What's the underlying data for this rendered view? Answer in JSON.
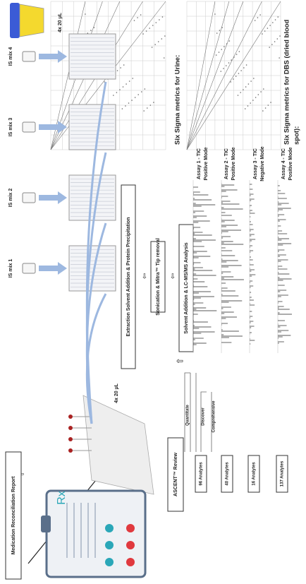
{
  "cup_label": "4x 20 µL",
  "plate_label": "4x 20 µL",
  "is_mixes": [
    "IS mix 1",
    "IS mix 2",
    "IS mix 3",
    "IS mix 4"
  ],
  "steps": {
    "extraction": "Extraction Solvent Addition & Protein Precipitation",
    "sonication": "Sonication & Mitra™ Tip removal",
    "analysis": "Solvent Addition & LC-MS/MS Analysis",
    "review": "ASCENT™ Review",
    "report": "Medication Reconciliation Report"
  },
  "modes": [
    "Quantitate",
    "Discover",
    "Comprehensive"
  ],
  "analytes": [
    "96 Analytes",
    "40 Analytes",
    "16 Analytes",
    "137 Analytes"
  ],
  "assays": [
    [
      "Assay 1 - TIC",
      "Positive Mode"
    ],
    [
      "Assay 2 - TIC",
      "Positive Mode"
    ],
    [
      "Assay 3 - TIC",
      "Negative Mode"
    ],
    [
      "Assay 4 - TIC",
      "Positive Mode"
    ]
  ],
  "sigma_titles": {
    "dbs": [
      "Six Sigma metrics for DBS (dried blood",
      "spot):"
    ],
    "urine": "Six Sigma metrics for Urine:"
  },
  "rx": "Rx"
}
